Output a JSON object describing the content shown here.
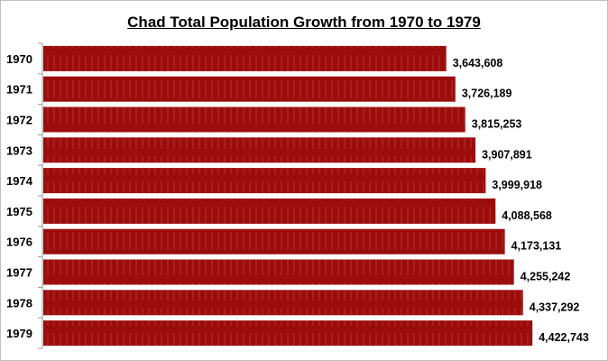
{
  "chart_data": {
    "type": "bar",
    "orientation": "horizontal",
    "title": "Chad Total Population Growth from 1970 to 1979",
    "categories": [
      "1970",
      "1971",
      "1972",
      "1973",
      "1974",
      "1975",
      "1976",
      "1977",
      "1978",
      "1979"
    ],
    "values": [
      3643608,
      3726189,
      3815253,
      3907891,
      3999918,
      4088568,
      4173131,
      4255242,
      4337292,
      4422743
    ],
    "data_labels": [
      "3,643,608",
      "3,726,189",
      "3,815,253",
      "3,907,891",
      "3,999,918",
      "4,088,568",
      "4,173,131",
      "4,255,242",
      "4,337,292",
      "4,422,743"
    ],
    "xlabel": "",
    "ylabel": "",
    "xlim": [
      0,
      5000000
    ],
    "grid": false,
    "legend": "none",
    "bar_color": "#9b0d0d"
  }
}
